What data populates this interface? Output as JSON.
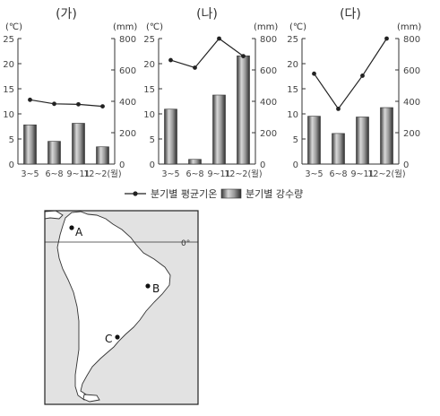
{
  "chart_data": [
    {
      "type": "bar+line",
      "title": "(가)",
      "categories": [
        "3~5",
        "6~8",
        "9~11",
        "12~2(월)"
      ],
      "left_unit": "(℃)",
      "right_unit": "(mm)",
      "temp_ylim": [
        0,
        25
      ],
      "temp_ticks": [
        "0",
        "5",
        "10",
        "15",
        "20",
        "25"
      ],
      "precip_ylim": [
        0,
        800
      ],
      "precip_ticks": [
        "0",
        "200",
        "400",
        "600",
        "800"
      ],
      "series": [
        {
          "name": "분기별 평균기온",
          "kind": "line",
          "axis": "left",
          "values": [
            12.8,
            12.0,
            11.9,
            11.5
          ]
        },
        {
          "name": "분기별 강수량",
          "kind": "bar",
          "axis": "right",
          "values": [
            250,
            145,
            260,
            110
          ]
        }
      ]
    },
    {
      "type": "bar+line",
      "title": "(나)",
      "categories": [
        "3~5",
        "6~8",
        "9~11",
        "12~2(월)"
      ],
      "left_unit": "(℃)",
      "right_unit": "(mm)",
      "temp_ylim": [
        0,
        25
      ],
      "temp_ticks": [
        "0",
        "5",
        "10",
        "15",
        "20",
        "25"
      ],
      "precip_ylim": [
        0,
        800
      ],
      "precip_ticks": [
        "0",
        "200",
        "400",
        "600",
        "800"
      ],
      "series": [
        {
          "name": "분기별 평균기온",
          "kind": "line",
          "axis": "left",
          "values": [
            20.7,
            19.2,
            25.0,
            21.5
          ]
        },
        {
          "name": "분기별 강수량",
          "kind": "bar",
          "axis": "right",
          "values": [
            350,
            30,
            440,
            690
          ]
        }
      ]
    },
    {
      "type": "bar+line",
      "title": "(다)",
      "categories": [
        "3~5",
        "6~8",
        "9~11",
        "12~2(월)"
      ],
      "left_unit": "(℃)",
      "right_unit": "(mm)",
      "temp_ylim": [
        0,
        25
      ],
      "temp_ticks": [
        "0",
        "5",
        "10",
        "15",
        "20",
        "25"
      ],
      "precip_ylim": [
        0,
        800
      ],
      "precip_ticks": [
        "0",
        "200",
        "400",
        "600",
        "800"
      ],
      "series": [
        {
          "name": "분기별 평균기온",
          "kind": "line",
          "axis": "left",
          "values": [
            18.0,
            11.0,
            17.6,
            25.0
          ]
        },
        {
          "name": "분기별 강수량",
          "kind": "bar",
          "axis": "right",
          "values": [
            305,
            195,
            300,
            360
          ]
        }
      ]
    }
  ],
  "legend": {
    "line_label": "분기별 평균기온",
    "bar_label": "분기별 강수량"
  },
  "map": {
    "equator_label": "0°",
    "points": [
      {
        "label": "A"
      },
      {
        "label": "B"
      },
      {
        "label": "C"
      }
    ]
  }
}
